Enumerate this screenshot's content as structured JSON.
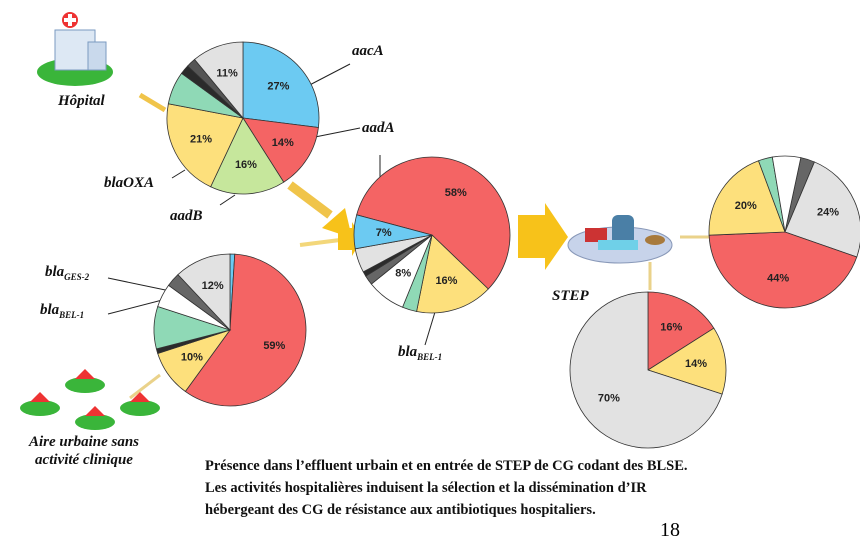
{
  "chart_data": [
    {
      "type": "pie",
      "values": [
        27,
        14,
        16,
        21,
        7,
        2,
        2,
        11
      ],
      "value_labels": [
        "27%",
        "14%",
        "16%",
        "21%",
        null,
        null,
        null,
        "11%"
      ],
      "colors": [
        "#6ccaf2",
        "#f46464",
        "#c6e79c",
        "#fde07c",
        "#8fd9b6",
        "#2b2b2b",
        "#555555",
        "#e2e2e2"
      ]
    },
    {
      "type": "pie",
      "values": [
        1,
        59,
        10,
        1,
        9,
        5,
        3,
        12
      ],
      "value_labels": [
        null,
        "59%",
        "10%",
        null,
        null,
        null,
        null,
        "12%"
      ],
      "colors": [
        "#6ccaf2",
        "#f46464",
        "#fde07c",
        "#2b2b2b",
        "#8fd9b6",
        "#ffffff",
        "#666666",
        "#e2e2e2"
      ]
    },
    {
      "type": "pie",
      "values": [
        58,
        16,
        3,
        8,
        2,
        1,
        5,
        7
      ],
      "value_labels": [
        "58%",
        "16%",
        null,
        "8%",
        null,
        null,
        null,
        "7%"
      ],
      "colors": [
        "#f46464",
        "#fde07c",
        "#8fd9b6",
        "#ffffff",
        "#666666",
        "#2b2b2b",
        "#e2e2e2",
        "#6ccaf2"
      ]
    },
    {
      "type": "pie",
      "values": [
        3,
        24,
        44,
        20,
        3,
        6
      ],
      "value_labels": [
        null,
        "24%",
        "44%",
        "20%",
        null,
        null
      ],
      "colors": [
        "#666666",
        "#e2e2e2",
        "#f46464",
        "#fde07c",
        "#8fd9b6",
        "#ffffff"
      ]
    },
    {
      "type": "pie",
      "values": [
        16,
        14,
        70
      ],
      "value_labels": [
        "16%",
        "14%",
        "70%"
      ],
      "colors": [
        "#f46464",
        "#fde07c",
        "#e2e2e2"
      ]
    }
  ],
  "annotations": {
    "hopital": "Hôpital",
    "aacA": "aacA",
    "aadA": "aadA",
    "blaOXA": "blaOXA",
    "aadB": "aadB",
    "ges2": {
      "base": "bla",
      "sub": "GES-2"
    },
    "bel1": {
      "base": "bla",
      "sub": "BEL-1"
    },
    "bel1_mid": {
      "base": "bla",
      "sub": "BEL-1"
    },
    "step": "STEP",
    "urban": [
      "Aire urbaine sans",
      "activité clinique"
    ]
  },
  "caption": [
    "Présence dans l’effluent urbain et en entrée de STEP de CG codant des BLSE.",
    "Les activités hospitalières induisent la sélection et la dissémination d’IR",
    "hébergeant des CG de résistance aux antibiotiques hospitaliers."
  ],
  "page_number": "18"
}
